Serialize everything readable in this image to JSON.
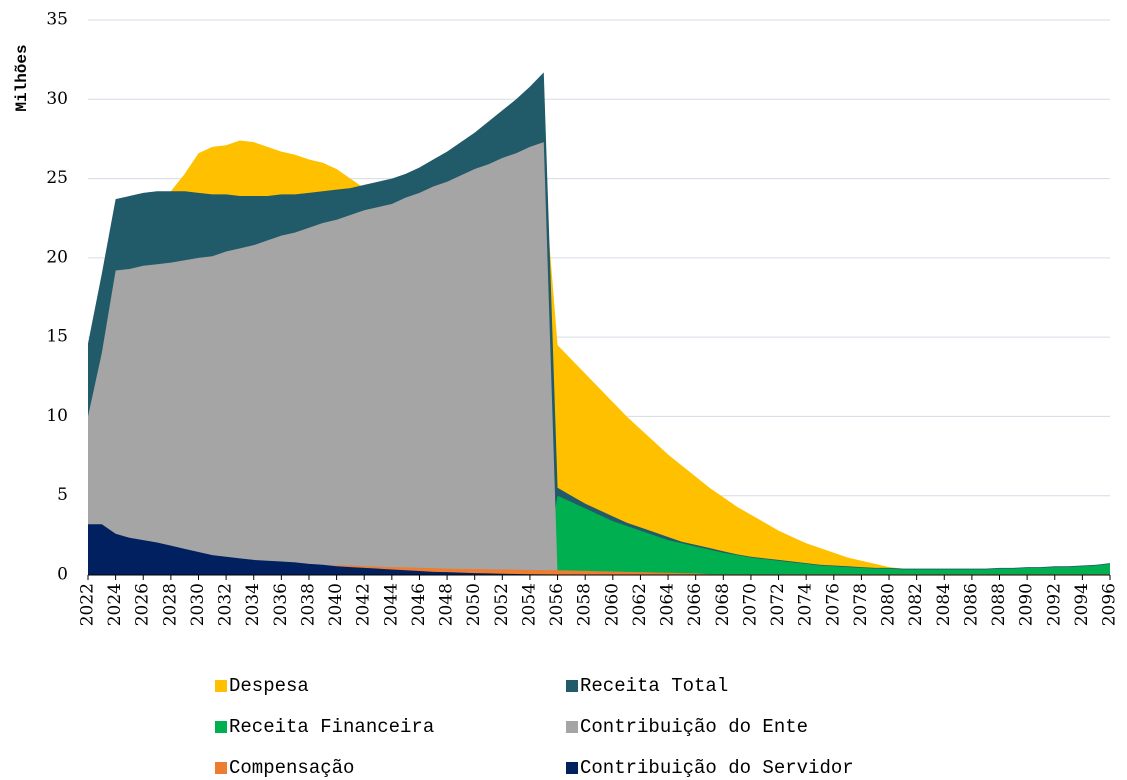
{
  "chart_data": {
    "type": "area",
    "y_label": "Milhões",
    "x": [
      2022,
      2023,
      2024,
      2025,
      2026,
      2027,
      2028,
      2029,
      2030,
      2031,
      2032,
      2033,
      2034,
      2035,
      2036,
      2037,
      2038,
      2039,
      2040,
      2041,
      2042,
      2043,
      2044,
      2045,
      2046,
      2047,
      2048,
      2049,
      2050,
      2051,
      2052,
      2053,
      2054,
      2055,
      2056,
      2057,
      2058,
      2059,
      2060,
      2061,
      2062,
      2063,
      2064,
      2065,
      2066,
      2067,
      2068,
      2069,
      2070,
      2071,
      2072,
      2073,
      2074,
      2075,
      2076,
      2077,
      2078,
      2079,
      2080,
      2081,
      2082,
      2083,
      2084,
      2085,
      2086,
      2087,
      2088,
      2089,
      2090,
      2091,
      2092,
      2093,
      2094,
      2095,
      2096
    ],
    "xlim": [
      2022,
      2096
    ],
    "xticks": [
      2022,
      2024,
      2026,
      2028,
      2030,
      2032,
      2034,
      2036,
      2038,
      2040,
      2042,
      2044,
      2046,
      2048,
      2050,
      2052,
      2054,
      2056,
      2058,
      2060,
      2062,
      2064,
      2066,
      2068,
      2070,
      2072,
      2074,
      2076,
      2078,
      2080,
      2082,
      2084,
      2086,
      2088,
      2090,
      2092,
      2094,
      2096
    ],
    "ylim": [
      0,
      35
    ],
    "yticks": [
      0,
      5,
      10,
      15,
      20,
      25,
      30,
      35
    ],
    "grid": true,
    "legend": "bottom",
    "series": [
      {
        "name": "Despesa",
        "color": "#FFC000",
        "values": [
          14,
          18,
          22,
          23,
          23.5,
          23.8,
          24.2,
          25.3,
          26.6,
          27.0,
          27.1,
          27.4,
          27.3,
          27.0,
          26.7,
          26.5,
          26.2,
          26.0,
          25.6,
          25.0,
          24.4,
          24.3,
          24.3,
          24.3,
          24.4,
          24.5,
          24.6,
          24.7,
          24.8,
          24.9,
          25.0,
          25.1,
          25.2,
          25.3,
          14.5,
          13.6,
          12.7,
          11.8,
          10.9,
          10.0,
          9.2,
          8.4,
          7.6,
          6.9,
          6.2,
          5.5,
          4.9,
          4.3,
          3.8,
          3.3,
          2.8,
          2.4,
          2.0,
          1.7,
          1.4,
          1.1,
          0.9,
          0.7,
          0.5,
          0.4,
          0.3,
          0.3,
          0.3,
          0.3,
          0.3,
          0.3,
          0.3,
          0.3,
          0.3,
          0.3,
          0.3,
          0.3,
          0.3,
          0.3,
          0.3
        ]
      },
      {
        "name": "Receita Total",
        "color": "#215A69",
        "values": [
          14.6,
          19.0,
          23.7,
          23.9,
          24.1,
          24.2,
          24.2,
          24.2,
          24.1,
          24.0,
          24.0,
          23.9,
          23.9,
          23.9,
          24.0,
          24.0,
          24.1,
          24.2,
          24.3,
          24.4,
          24.6,
          24.8,
          25.0,
          25.3,
          25.7,
          26.2,
          26.7,
          27.3,
          27.9,
          28.6,
          29.3,
          30.0,
          30.8,
          31.7,
          5.5,
          5.0,
          4.5,
          4.1,
          3.7,
          3.3,
          3.0,
          2.7,
          2.4,
          2.1,
          1.9,
          1.7,
          1.5,
          1.3,
          1.15,
          1.05,
          0.95,
          0.85,
          0.75,
          0.65,
          0.6,
          0.55,
          0.5,
          0.45,
          0.45,
          0.4,
          0.4,
          0.4,
          0.4,
          0.4,
          0.4,
          0.4,
          0.45,
          0.45,
          0.5,
          0.5,
          0.55,
          0.55,
          0.6,
          0.65,
          0.75
        ]
      },
      {
        "name": "Receita Financeira",
        "color": "#00B050",
        "values": [
          0,
          0,
          0,
          0,
          0,
          0,
          0,
          0,
          0,
          0,
          0,
          0,
          0,
          0,
          0,
          0,
          0,
          0,
          0,
          0,
          0,
          0,
          0,
          0,
          0,
          0,
          0,
          0,
          0,
          0,
          0,
          0,
          0,
          0,
          5.0,
          4.6,
          4.2,
          3.8,
          3.4,
          3.1,
          2.8,
          2.5,
          2.2,
          2.0,
          1.8,
          1.6,
          1.4,
          1.25,
          1.1,
          1.0,
          0.9,
          0.8,
          0.7,
          0.6,
          0.55,
          0.5,
          0.45,
          0.4,
          0.4,
          0.35,
          0.35,
          0.35,
          0.35,
          0.35,
          0.35,
          0.35,
          0.4,
          0.4,
          0.45,
          0.45,
          0.5,
          0.5,
          0.55,
          0.6,
          0.7
        ]
      },
      {
        "name": "Contribuição do Ente",
        "color": "#A5A5A5",
        "values": [
          10.0,
          14.0,
          19.2,
          19.3,
          19.5,
          19.6,
          19.7,
          19.85,
          20.0,
          20.1,
          20.4,
          20.6,
          20.8,
          21.1,
          21.4,
          21.6,
          21.9,
          22.2,
          22.4,
          22.7,
          23.0,
          23.2,
          23.4,
          23.8,
          24.1,
          24.5,
          24.8,
          25.2,
          25.6,
          25.9,
          26.3,
          26.6,
          27.0,
          27.3,
          0,
          0,
          0,
          0,
          0,
          0,
          0,
          0,
          0,
          0,
          0,
          0,
          0,
          0,
          0,
          0,
          0,
          0,
          0,
          0,
          0,
          0,
          0,
          0,
          0,
          0,
          0,
          0,
          0,
          0,
          0,
          0,
          0,
          0,
          0,
          0,
          0,
          0,
          0,
          0,
          0
        ]
      },
      {
        "name": "Compensação",
        "color": "#ED7D31",
        "values": [
          0.6,
          0.6,
          0.6,
          0.6,
          0.6,
          0.6,
          0.6,
          0.6,
          0.6,
          0.6,
          0.6,
          0.6,
          0.6,
          0.6,
          0.6,
          0.6,
          0.6,
          0.6,
          0.6,
          0.6,
          0.55,
          0.53,
          0.5,
          0.48,
          0.45,
          0.43,
          0.4,
          0.39,
          0.38,
          0.36,
          0.35,
          0.34,
          0.32,
          0.31,
          0.3,
          0.28,
          0.26,
          0.24,
          0.22,
          0.2,
          0.18,
          0.16,
          0.14,
          0.12,
          0.1,
          0.05,
          0.05,
          0.05,
          0.05,
          0.05,
          0.05,
          0.05,
          0.05,
          0.05,
          0.05,
          0.05,
          0.05,
          0.05,
          0.05,
          0.05,
          0.05,
          0.05,
          0.05,
          0.05,
          0.05,
          0.05,
          0.05,
          0.05,
          0.05,
          0.05,
          0.05,
          0.05,
          0.05,
          0.05,
          0.05
        ]
      },
      {
        "name": "Contribuição do Servidor",
        "color": "#002060",
        "values": [
          3.2,
          3.2,
          2.6,
          2.35,
          2.2,
          2.05,
          1.85,
          1.65,
          1.45,
          1.25,
          1.15,
          1.05,
          0.95,
          0.9,
          0.85,
          0.8,
          0.7,
          0.65,
          0.55,
          0.5,
          0.45,
          0.4,
          0.35,
          0.3,
          0.25,
          0.2,
          0.18,
          0.15,
          0.12,
          0.1,
          0.08,
          0.06,
          0.05,
          0.04,
          0.03,
          0.02,
          0.02,
          0.02,
          0.02,
          0.02,
          0.02,
          0.02,
          0.02,
          0.02,
          0.02,
          0.02,
          0.02,
          0.02,
          0.02,
          0.02,
          0.02,
          0.02,
          0.02,
          0.02,
          0.02,
          0.02,
          0.02,
          0.02,
          0.02,
          0.02,
          0.02,
          0.02,
          0.02,
          0.02,
          0.02,
          0.02,
          0.02,
          0.02,
          0.02,
          0.02,
          0.02,
          0.02,
          0.02,
          0.02,
          0.02
        ]
      }
    ]
  }
}
